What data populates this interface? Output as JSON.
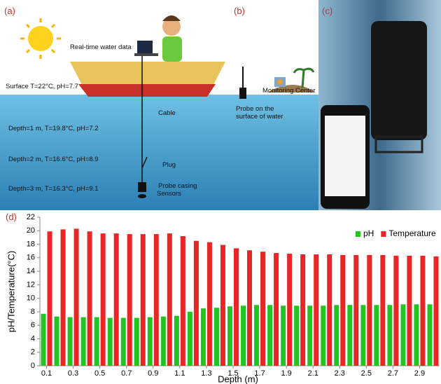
{
  "panels": {
    "a": {
      "label": "(a)",
      "realtime": "Real-time water data",
      "surface": "Surface T=22°C, pH=7.7",
      "cable": "Cable",
      "depth1": "Depth=1 m, T=19.8°C, pH=7.2",
      "plug": "Plug",
      "depth2": "Depth=2 m, T=16.6°C, pH=8.9",
      "casing": "Probe casing",
      "sensors": "Sensors",
      "depth3": "Depth=3 m, T=16.3°C, pH=9.1"
    },
    "b": {
      "label": "(b)",
      "probe": "Probe on the surface of water",
      "center": "Monitoring Center"
    },
    "c": {
      "label": "(c)"
    },
    "d": {
      "label": "(d)"
    }
  },
  "chart_data": {
    "type": "bar",
    "x_label": "Depth (m)",
    "y_label": "pH/Temperature(°C)",
    "categories": [
      "0.1",
      null,
      "0.3",
      null,
      "0.5",
      null,
      "0.7",
      null,
      "0.9",
      null,
      "1.1",
      null,
      "1.3",
      null,
      "1.5",
      null,
      "1.7",
      null,
      "1.9",
      null,
      "2.1",
      null,
      "2.3",
      null,
      "2.5",
      null,
      "2.7",
      null,
      "2.9",
      null
    ],
    "series": [
      {
        "name": "pH",
        "color": "#22c422",
        "values": [
          7.7,
          7.3,
          7.2,
          7.2,
          7.2,
          7.1,
          7.1,
          7.1,
          7.2,
          7.3,
          7.4,
          8.0,
          8.5,
          8.6,
          8.8,
          8.9,
          9.0,
          9.0,
          8.9,
          8.9,
          8.9,
          8.9,
          9.0,
          9.0,
          9.0,
          9.0,
          9.0,
          9.1,
          9.1,
          9.1
        ]
      },
      {
        "name": "Temperature",
        "color": "#e82626",
        "values": [
          19.9,
          20.2,
          20.3,
          19.9,
          19.6,
          19.6,
          19.5,
          19.5,
          19.5,
          19.6,
          19.2,
          18.5,
          18.3,
          17.9,
          17.4,
          17.1,
          16.9,
          16.7,
          16.6,
          16.5,
          16.5,
          16.5,
          16.4,
          16.4,
          16.4,
          16.4,
          16.3,
          16.3,
          16.3,
          16.2
        ]
      }
    ],
    "ylim": [
      0,
      22
    ],
    "yticks": [
      0,
      2,
      4,
      6,
      8,
      10,
      12,
      14,
      16,
      18,
      20,
      22
    ],
    "legend": "upper right"
  }
}
